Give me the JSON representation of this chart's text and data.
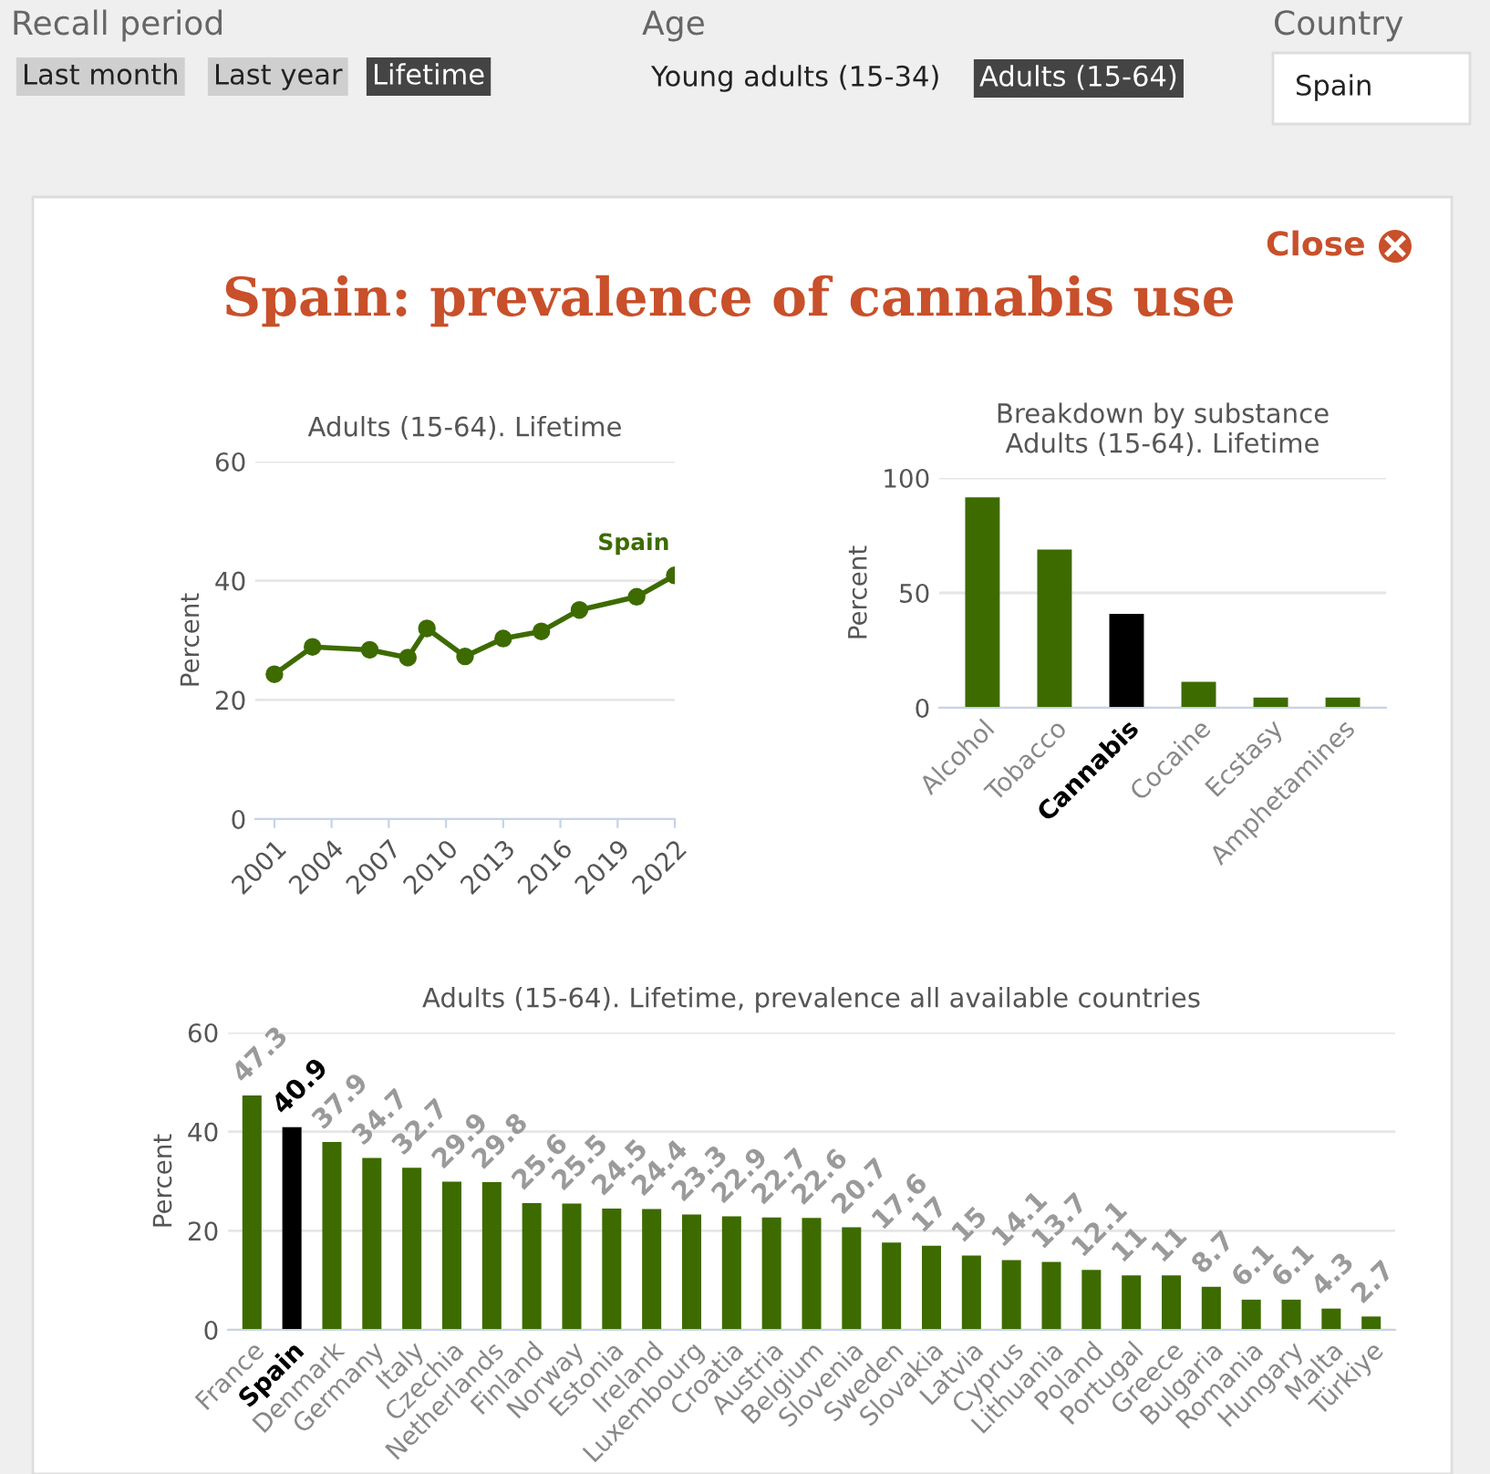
{
  "chart_data": [
    {
      "type": "other",
      "title": "Spain: prevalence of cannabis use",
      "annotations": [
        "Recall period",
        "Last month",
        "Last year",
        "Lifetime",
        "Age",
        "Young adults (15-34)",
        "Adults (15-64)",
        "Country",
        "Spain",
        "Close"
      ]
    },
    {
      "type": "line",
      "title": "Adults (15-64). Lifetime",
      "ylabel": "Percent",
      "x": [
        2001,
        2003,
        2006,
        2008,
        2009,
        2011,
        2013,
        2015,
        2017,
        2020,
        2022
      ],
      "series": [
        {
          "name": "Spain",
          "color": "#3d6b00",
          "values": [
            24.3,
            28.9,
            28.4,
            27.1,
            32.0,
            27.3,
            30.3,
            31.5,
            35.1,
            37.3,
            40.9
          ]
        }
      ],
      "xlim": [
        2000,
        2022
      ],
      "xticks": [
        2001,
        2004,
        2007,
        2010,
        2013,
        2016,
        2019,
        2022
      ],
      "ylim": [
        0,
        60
      ],
      "yticks": [
        0,
        20,
        40,
        60
      ],
      "grid": "y",
      "marker": "circle",
      "line_style": "solid",
      "legend": false
    },
    {
      "type": "bar",
      "title": "Breakdown by substance\nAdults (15-64). Lifetime",
      "ylabel": "Percent",
      "categories": [
        "Alcohol",
        "Tobacco",
        "Cannabis",
        "Cocaine",
        "Ecstasy",
        "Amphetamines"
      ],
      "values": [
        91.6,
        68.8,
        40.9,
        11.3,
        4.5,
        4.5
      ],
      "colors": [
        "#3d6b00",
        "#3d6b00",
        "#000000",
        "#3d6b00",
        "#3d6b00",
        "#3d6b00"
      ],
      "ylim": [
        0,
        100
      ],
      "yticks": [
        0,
        50,
        100
      ],
      "grid": "y"
    },
    {
      "type": "bar",
      "title": "Adults (15-64). Lifetime, prevalence all available countries",
      "ylabel": "Percent",
      "categories": [
        "France",
        "Spain",
        "Denmark",
        "Germany",
        "Italy",
        "Czechia",
        "Netherlands",
        "Finland",
        "Norway",
        "Estonia",
        "Ireland",
        "Luxembourg",
        "Croatia",
        "Austria",
        "Belgium",
        "Slovenia",
        "Sweden",
        "Slovakia",
        "Latvia",
        "Cyprus",
        "Lithuania",
        "Poland",
        "Portugal",
        "Greece",
        "Bulgaria",
        "Romania",
        "Hungary",
        "Malta",
        "Türkiye"
      ],
      "values": [
        47.3,
        40.9,
        37.9,
        34.7,
        32.7,
        29.9,
        29.8,
        25.6,
        25.5,
        24.5,
        24.4,
        23.3,
        22.9,
        22.7,
        22.6,
        20.7,
        17.6,
        17,
        15,
        14.1,
        13.7,
        12.1,
        11,
        11,
        8.7,
        6.1,
        6.1,
        4.3,
        2.7
      ],
      "colors": [
        "#3d6b00",
        "#000000",
        "#3d6b00",
        "#3d6b00",
        "#3d6b00",
        "#3d6b00",
        "#3d6b00",
        "#3d6b00",
        "#3d6b00",
        "#3d6b00",
        "#3d6b00",
        "#3d6b00",
        "#3d6b00",
        "#3d6b00",
        "#3d6b00",
        "#3d6b00",
        "#3d6b00",
        "#3d6b00",
        "#3d6b00",
        "#3d6b00",
        "#3d6b00",
        "#3d6b00",
        "#3d6b00",
        "#3d6b00",
        "#3d6b00",
        "#3d6b00",
        "#3d6b00",
        "#3d6b00",
        "#3d6b00"
      ],
      "ylim": [
        0,
        60
      ],
      "yticks": [
        0,
        20,
        40,
        60
      ],
      "grid": "y",
      "data_labels": true
    }
  ]
}
